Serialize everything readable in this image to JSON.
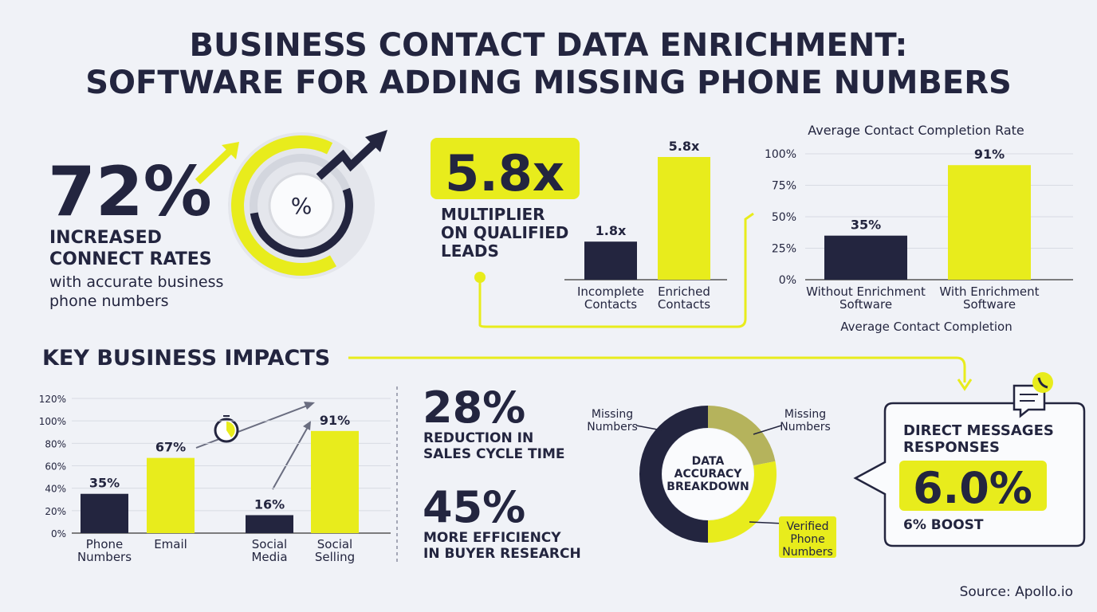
{
  "title_lines": [
    "BUSINESS CONTACT DATA ENRICHMENT:",
    "SOFTWARE FOR ADDING MISSING PHONE NUMBERS"
  ],
  "hero": {
    "value": "72%",
    "headline": [
      "INCREASED",
      "CONNECT RATES"
    ],
    "text": [
      "with accurate business",
      "phone numbers"
    ],
    "icon": "%"
  },
  "multiplier": {
    "value": "5.8x",
    "label": [
      "MULTIPLIER",
      "ON QUALIFIED",
      "LEADS"
    ]
  },
  "section_title": "KEY BUSINESS IMPACTS",
  "stats": [
    {
      "value": "28%",
      "label": [
        "REDUCTION IN",
        "SALES CYCLE TIME"
      ]
    },
    {
      "value": "45%",
      "label": [
        "MORE EFFICIENCY",
        "IN BUYER RESEARCH"
      ]
    }
  ],
  "callout": {
    "title": [
      "DIRECT MESSAGES",
      "RESPONSES"
    ],
    "value": "6.0%",
    "note": "6% BOOST"
  },
  "source": "Source: Apollo.io",
  "chart_data": [
    {
      "type": "bar",
      "categories": [
        [
          "Incomplete",
          "Contacts"
        ],
        [
          "Enriched",
          "Contacts"
        ]
      ],
      "values": [
        1.8,
        5.8
      ],
      "value_labels": [
        "1.8x",
        "5.8x"
      ],
      "colors": [
        "#23253f",
        "#e8ec1c"
      ]
    },
    {
      "type": "bar",
      "title": "Average Contact Completion Rate",
      "xlabel": "Average Contact Completion",
      "categories": [
        [
          "Without Enrichment",
          "Software"
        ],
        [
          "With Enrichment",
          "Software"
        ]
      ],
      "values": [
        35,
        91
      ],
      "value_labels": [
        "35%",
        "91%"
      ],
      "colors": [
        "#23253f",
        "#e8ec1c"
      ],
      "ylim": [
        0,
        100
      ],
      "yticks": [
        {
          "value": 0,
          "label": "0%"
        },
        {
          "value": 25,
          "label": "25%"
        },
        {
          "value": 50,
          "label": "50%"
        },
        {
          "value": 75,
          "label": "75%"
        },
        {
          "value": 100,
          "label": "100%"
        }
      ],
      "grid": true
    },
    {
      "type": "bar",
      "categories": [
        [
          "Phone",
          "Numbers"
        ],
        [
          "Email"
        ],
        [
          "Social",
          "Media"
        ],
        [
          "Social",
          "Selling"
        ]
      ],
      "values": [
        35,
        67,
        16,
        91
      ],
      "value_labels": [
        "35%",
        "67%",
        "16%",
        "91%"
      ],
      "colors": [
        "#23253f",
        "#e8ec1c",
        "#23253f",
        "#e8ec1c"
      ],
      "ylim": [
        0,
        120
      ],
      "yticks": [
        {
          "value": 0,
          "label": "0%"
        },
        {
          "value": 20,
          "label": "20%"
        },
        {
          "value": 40,
          "label": "40%"
        },
        {
          "value": 60,
          "label": "60%"
        },
        {
          "value": 80,
          "label": "80%"
        },
        {
          "value": 100,
          "label": "100%"
        },
        {
          "value": 120,
          "label": "120%"
        }
      ],
      "grid": true
    },
    {
      "type": "donut",
      "title": [
        "DATA",
        "ACCURACY",
        "BREAKDOWN"
      ],
      "categories": [
        [
          "Missing",
          "Numbers"
        ],
        [
          "Verified",
          "Phone",
          "Numbers"
        ],
        [
          "Missing",
          "Numbers"
        ]
      ],
      "values": [
        22,
        28,
        50
      ],
      "colors": [
        "#b5b35c",
        "#e8ec1c",
        "#23253f"
      ]
    }
  ]
}
